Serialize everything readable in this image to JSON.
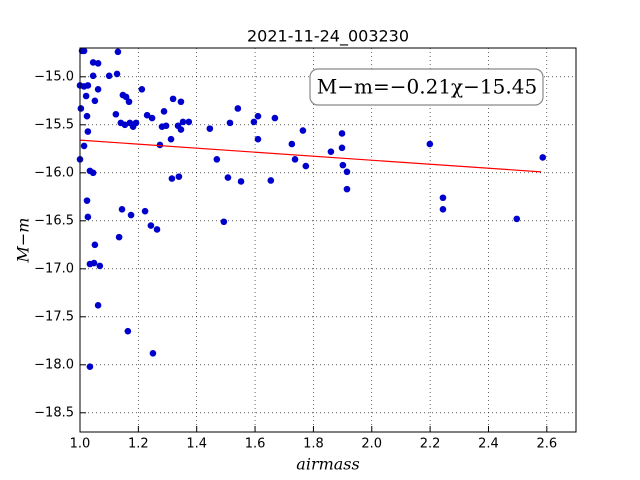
{
  "chart_data": {
    "type": "scatter",
    "title": "2021-11-24_003230",
    "x_label": "airmass",
    "y_label": "M−m",
    "annotation": "M−m=−0.21χ−15.45",
    "xlim": [
      1.0,
      2.7
    ],
    "ylim": [
      -18.7,
      -14.7
    ],
    "grid": true,
    "xticks": [
      {
        "value": 1.0,
        "label": "1.0"
      },
      {
        "value": 1.2,
        "label": "1.2"
      },
      {
        "value": 1.4,
        "label": "1.4"
      },
      {
        "value": 1.6,
        "label": "1.6"
      },
      {
        "value": 1.8,
        "label": "1.8"
      },
      {
        "value": 2.0,
        "label": "2.0"
      },
      {
        "value": 2.2,
        "label": "2.2"
      },
      {
        "value": 2.4,
        "label": "2.4"
      },
      {
        "value": 2.6,
        "label": "2.6"
      }
    ],
    "yticks": [
      {
        "value": -15.0,
        "label": "−15.0"
      },
      {
        "value": -15.5,
        "label": "−15.5"
      },
      {
        "value": -16.0,
        "label": "−16.0"
      },
      {
        "value": -16.5,
        "label": "−16.5"
      },
      {
        "value": -17.0,
        "label": "−17.0"
      },
      {
        "value": -17.5,
        "label": "−17.5"
      },
      {
        "value": -18.0,
        "label": "−18.0"
      },
      {
        "value": -18.5,
        "label": "−18.5"
      }
    ],
    "series": [
      {
        "color": "#0000cc",
        "x": [
          1.007,
          1.014,
          1.13,
          1.045,
          1.062,
          1.045,
          1.014,
          1.0,
          1.062,
          1.127,
          1.1,
          1.027,
          1.021,
          1.051,
          1.003,
          1.024,
          1.027,
          1.014,
          1.0,
          1.034,
          1.045,
          1.024,
          1.027,
          1.051,
          1.034,
          1.048,
          1.068,
          1.062,
          1.034,
          1.147,
          1.158,
          1.168,
          1.212,
          1.123,
          1.14,
          1.154,
          1.171,
          1.182,
          1.192,
          1.23,
          1.247,
          1.319,
          1.346,
          1.288,
          1.281,
          1.295,
          1.336,
          1.346,
          1.353,
          1.373,
          1.312,
          1.274,
          1.339,
          1.315,
          1.144,
          1.175,
          1.223,
          1.243,
          1.264,
          1.134,
          1.164,
          1.25,
          1.445,
          1.514,
          1.541,
          1.469,
          1.507,
          1.552,
          1.493,
          1.596,
          1.61,
          1.61,
          1.668,
          1.654,
          1.726,
          1.737,
          1.764,
          1.774,
          1.86,
          1.898,
          1.898,
          1.901,
          1.915,
          1.915,
          2.199,
          2.244,
          2.244,
          2.497,
          2.586
        ],
        "values": [
          -14.73,
          -14.73,
          -14.74,
          -14.85,
          -14.86,
          -14.99,
          -15.1,
          -15.09,
          -15.13,
          -14.97,
          -14.99,
          -15.09,
          -15.2,
          -15.25,
          -15.33,
          -15.41,
          -15.57,
          -15.72,
          -15.86,
          -15.98,
          -16.0,
          -16.29,
          -16.46,
          -16.75,
          -16.95,
          -16.94,
          -16.97,
          -17.38,
          -18.02,
          -15.19,
          -15.21,
          -15.26,
          -15.13,
          -15.39,
          -15.48,
          -15.5,
          -15.48,
          -15.52,
          -15.48,
          -15.4,
          -15.43,
          -15.23,
          -15.26,
          -15.36,
          -15.52,
          -15.51,
          -15.51,
          -15.55,
          -15.47,
          -15.47,
          -15.65,
          -15.71,
          -16.04,
          -16.06,
          -16.38,
          -16.44,
          -16.4,
          -16.55,
          -16.59,
          -16.67,
          -17.65,
          -17.88,
          -15.54,
          -15.48,
          -15.33,
          -15.86,
          -16.05,
          -16.09,
          -16.51,
          -15.47,
          -15.41,
          -15.65,
          -15.43,
          -16.08,
          -15.7,
          -15.86,
          -15.56,
          -15.93,
          -15.78,
          -15.59,
          -15.74,
          -15.92,
          -15.99,
          -16.17,
          -15.7,
          -16.26,
          -16.38,
          -16.48,
          -15.84
        ]
      }
    ],
    "fit": {
      "color": "#ff0000",
      "x": [
        1.0,
        2.58
      ],
      "values": [
        -15.66,
        -15.99
      ]
    }
  }
}
